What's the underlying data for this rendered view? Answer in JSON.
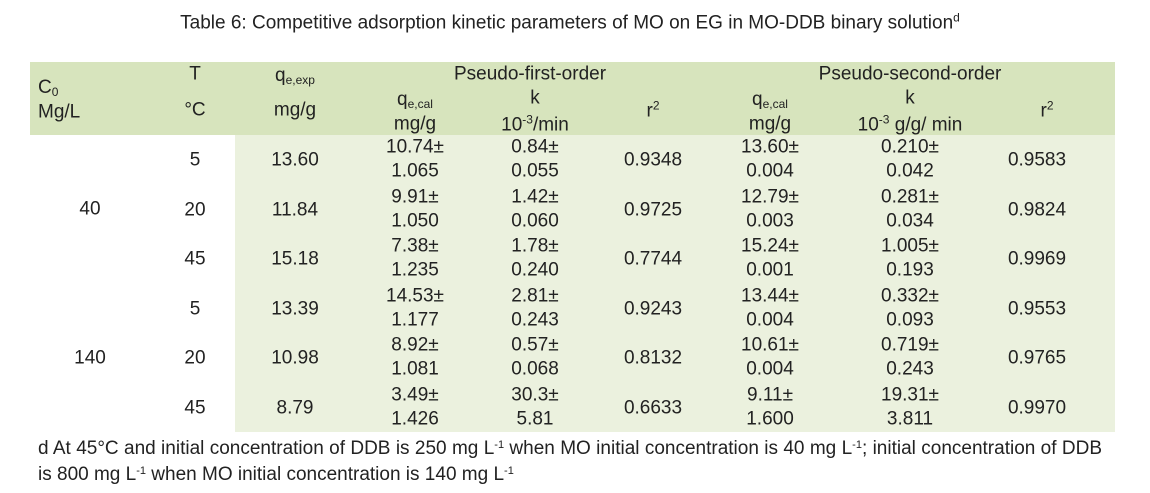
{
  "title": {
    "text": "Table 6: Competitive adsorption kinetic parameters of MO on EG in MO-DDB binary solution",
    "note": "d"
  },
  "table": {
    "header": {
      "c0": {
        "symbol": "C",
        "sub": "0",
        "unit": "Mg/L"
      },
      "t": {
        "symbol": "T",
        "unit": "°C"
      },
      "qe_exp": {
        "symbol": "q",
        "sub": "e,exp",
        "unit": "mg/g"
      },
      "pfo": {
        "title": "Pseudo-first-order",
        "qe_cal": {
          "symbol": "q",
          "sub": "e,cal",
          "unit": "mg/g"
        },
        "k": {
          "symbol": "k",
          "unit_base": "10",
          "unit_exp": "-3",
          "unit_rest": "/min"
        },
        "r2": {
          "symbol": "r",
          "sup": "2"
        }
      },
      "pso": {
        "title": "Pseudo-second-order",
        "qe_cal": {
          "symbol": "q",
          "sub": "e,cal",
          "unit": "mg/g"
        },
        "k": {
          "symbol": "k",
          "unit_base": "10",
          "unit_exp": "-3",
          "unit_rest": " g/g/ min"
        },
        "r2": {
          "symbol": "r",
          "sup": "2"
        }
      }
    },
    "groups": [
      {
        "c0": "40",
        "rows": [
          [
            "5",
            "13.60",
            "10.74±",
            "1.065",
            "0.84±",
            "0.055",
            "0.9348",
            "13.60±",
            "0.004",
            "0.210±",
            "0.042",
            "0.9583"
          ],
          [
            "20",
            "11.84",
            "9.91±",
            "1.050",
            "1.42±",
            "0.060",
            "0.9725",
            "12.79±",
            "0.003",
            "0.281±",
            "0.034",
            "0.9824"
          ],
          [
            "45",
            "15.18",
            "7.38±",
            "1.235",
            "1.78±",
            "0.240",
            "0.7744",
            "15.24±",
            "0.001",
            "1.005±",
            "0.193",
            "0.9969"
          ]
        ]
      },
      {
        "c0": "140",
        "rows": [
          [
            "5",
            "13.39",
            "14.53±",
            "1.177",
            "2.81±",
            "0.243",
            "0.9243",
            "13.44±",
            "0.004",
            "0.332±",
            "0.093",
            "0.9553"
          ],
          [
            "20",
            "10.98",
            "8.92±",
            "1.081",
            "0.57±",
            "0.068",
            "0.8132",
            "10.61±",
            "0.004",
            "0.719±",
            "0.243",
            "0.9765"
          ],
          [
            "45",
            "8.79",
            "3.49±",
            "1.426",
            "30.3±",
            "5.81",
            "0.6633",
            "9.11±",
            "1.600",
            "19.31±",
            "3.811",
            "0.9970"
          ]
        ]
      }
    ]
  },
  "footnote": [
    "d At 45°C and initial concentration of DDB is 250 mg L",
    "-1",
    " when MO initial concentration is 40 mg L",
    "-1",
    "; initial concentration of DDB is 800 mg L",
    "-1",
    " when MO initial concentration is 140 mg L",
    "-1"
  ]
}
